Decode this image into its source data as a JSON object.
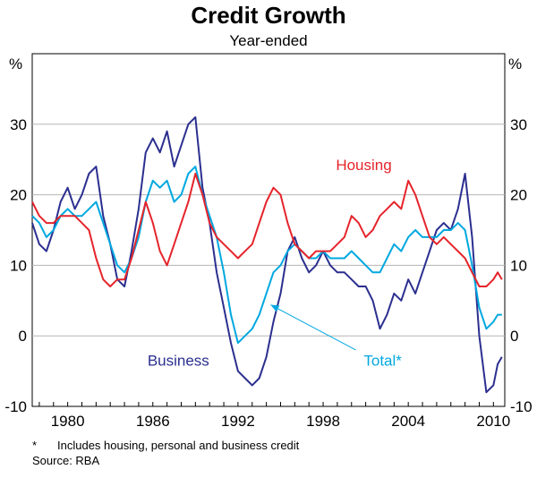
{
  "chart_data": {
    "type": "line",
    "title": "Credit Growth",
    "subtitle": "Year-ended",
    "ylabel_left": "%",
    "ylabel_right": "%",
    "ylim": [
      -10,
      40
    ],
    "xlim": [
      1977.5,
      2010.8
    ],
    "yticks": [
      -10,
      0,
      10,
      20,
      30
    ],
    "xticks": [
      1980,
      1986,
      1992,
      1998,
      2004,
      2010
    ],
    "grid": true,
    "series": [
      {
        "name": "Business",
        "color": "#2b2f8f",
        "x": [
          1977.5,
          1978.0,
          1978.5,
          1979.0,
          1979.5,
          1980.0,
          1980.5,
          1981.0,
          1981.5,
          1982.0,
          1982.5,
          1983.0,
          1983.5,
          1984.0,
          1984.5,
          1985.0,
          1985.5,
          1986.0,
          1986.5,
          1987.0,
          1987.5,
          1988.0,
          1988.5,
          1989.0,
          1989.5,
          1990.0,
          1990.5,
          1991.0,
          1991.5,
          1992.0,
          1992.5,
          1993.0,
          1993.5,
          1994.0,
          1994.5,
          1995.0,
          1995.5,
          1996.0,
          1996.5,
          1997.0,
          1997.5,
          1998.0,
          1998.5,
          1999.0,
          1999.5,
          2000.0,
          2000.5,
          2001.0,
          2001.5,
          2002.0,
          2002.5,
          2003.0,
          2003.5,
          2004.0,
          2004.5,
          2005.0,
          2005.5,
          2006.0,
          2006.5,
          2007.0,
          2007.5,
          2008.0,
          2008.5,
          2009.0,
          2009.5,
          2010.0,
          2010.3,
          2010.6
        ],
        "values": [
          16,
          13,
          12,
          15,
          19,
          21,
          18,
          20,
          23,
          24,
          17,
          13,
          8,
          7,
          12,
          18,
          26,
          28,
          26,
          29,
          24,
          27,
          30,
          31,
          21,
          16,
          9,
          4,
          -1,
          -5,
          -6,
          -7,
          -6,
          -3,
          2,
          6,
          12,
          14,
          11,
          9,
          10,
          12,
          10,
          9,
          9,
          8,
          7,
          7,
          5,
          1,
          3,
          6,
          5,
          8,
          6,
          9,
          12,
          15,
          16,
          15,
          18,
          23,
          14,
          0,
          -8,
          -7,
          -4,
          -3
        ]
      },
      {
        "name": "Total*",
        "color": "#00a8e0",
        "x": [
          1977.5,
          1978.0,
          1978.5,
          1979.0,
          1979.5,
          1980.0,
          1980.5,
          1981.0,
          1981.5,
          1982.0,
          1982.5,
          1983.0,
          1983.5,
          1984.0,
          1984.5,
          1985.0,
          1985.5,
          1986.0,
          1986.5,
          1987.0,
          1987.5,
          1988.0,
          1988.5,
          1989.0,
          1989.5,
          1990.0,
          1990.5,
          1991.0,
          1991.5,
          1992.0,
          1992.5,
          1993.0,
          1993.5,
          1994.0,
          1994.5,
          1995.0,
          1995.5,
          1996.0,
          1996.5,
          1997.0,
          1997.5,
          1998.0,
          1998.5,
          1999.0,
          1999.5,
          2000.0,
          2000.5,
          2001.0,
          2001.5,
          2002.0,
          2002.5,
          2003.0,
          2003.5,
          2004.0,
          2004.5,
          2005.0,
          2005.5,
          2006.0,
          2006.5,
          2007.0,
          2007.5,
          2008.0,
          2008.5,
          2009.0,
          2009.5,
          2010.0,
          2010.3,
          2010.6
        ],
        "values": [
          17,
          16,
          14,
          15,
          17,
          18,
          17,
          17,
          18,
          19,
          16,
          13,
          10,
          9,
          11,
          14,
          19,
          22,
          21,
          22,
          19,
          20,
          23,
          24,
          20,
          17,
          14,
          9,
          3,
          -1,
          0,
          1,
          3,
          6,
          9,
          10,
          12,
          13,
          12,
          11,
          11,
          12,
          11,
          11,
          11,
          12,
          11,
          10,
          9,
          9,
          11,
          13,
          12,
          14,
          15,
          14,
          14,
          14,
          15,
          15,
          16,
          15,
          10,
          4,
          1,
          2,
          3,
          3
        ]
      },
      {
        "name": "Housing",
        "color": "#e5242b",
        "x": [
          1977.5,
          1978.0,
          1978.5,
          1979.0,
          1979.5,
          1980.0,
          1980.5,
          1981.0,
          1981.5,
          1982.0,
          1982.5,
          1983.0,
          1983.5,
          1984.0,
          1984.5,
          1985.0,
          1985.5,
          1986.0,
          1986.5,
          1987.0,
          1987.5,
          1988.0,
          1988.5,
          1989.0,
          1989.5,
          1990.0,
          1990.5,
          1991.0,
          1991.5,
          1992.0,
          1992.5,
          1993.0,
          1993.5,
          1994.0,
          1994.5,
          1995.0,
          1995.5,
          1996.0,
          1996.5,
          1997.0,
          1997.5,
          1998.0,
          1998.5,
          1999.0,
          1999.5,
          2000.0,
          2000.5,
          2001.0,
          2001.5,
          2002.0,
          2002.5,
          2003.0,
          2003.5,
          2004.0,
          2004.5,
          2005.0,
          2005.5,
          2006.0,
          2006.5,
          2007.0,
          2007.5,
          2008.0,
          2008.5,
          2009.0,
          2009.5,
          2010.0,
          2010.3,
          2010.6
        ],
        "values": [
          19,
          17,
          16,
          16,
          17,
          17,
          17,
          16,
          15,
          11,
          8,
          7,
          8,
          8,
          11,
          15,
          19,
          16,
          12,
          10,
          13,
          16,
          19,
          23,
          20,
          16,
          14,
          13,
          12,
          11,
          12,
          13,
          16,
          19,
          21,
          20,
          16,
          13,
          12,
          11,
          12,
          12,
          12,
          13,
          14,
          17,
          16,
          14,
          15,
          17,
          18,
          19,
          18,
          22,
          20,
          17,
          14,
          13,
          14,
          13,
          12,
          11,
          9,
          7,
          7,
          8,
          9,
          8
        ]
      }
    ],
    "annotations": [
      {
        "text": "Housing",
        "series": "Housing"
      },
      {
        "text": "Business",
        "series": "Business"
      },
      {
        "text": "Total*",
        "series": "Total*",
        "arrow": true
      }
    ]
  },
  "footnote": {
    "mark": "*",
    "text": "Includes housing, personal and business credit"
  },
  "source": "Source: RBA"
}
